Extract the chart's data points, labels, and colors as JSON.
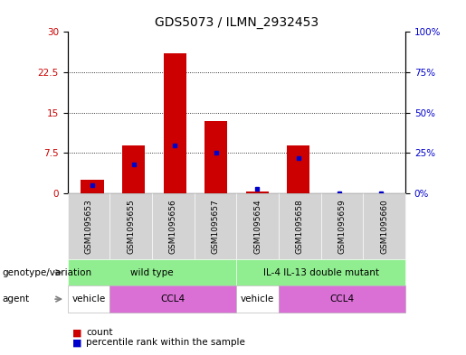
{
  "title": "GDS5073 / ILMN_2932453",
  "samples": [
    "GSM1095653",
    "GSM1095655",
    "GSM1095656",
    "GSM1095657",
    "GSM1095654",
    "GSM1095658",
    "GSM1095659",
    "GSM1095660"
  ],
  "counts": [
    2.5,
    9.0,
    26.0,
    13.5,
    0.3,
    9.0,
    0.05,
    0.05
  ],
  "percentiles": [
    5,
    18,
    30,
    25,
    3,
    22,
    0,
    0
  ],
  "ylim_left": [
    0,
    30
  ],
  "ylim_right": [
    0,
    100
  ],
  "yticks_left": [
    0,
    7.5,
    15,
    22.5,
    30
  ],
  "yticks_right": [
    0,
    25,
    50,
    75,
    100
  ],
  "bar_color": "#cc0000",
  "marker_color": "#0000cc",
  "bar_width": 0.55,
  "genotype_groups": [
    {
      "label": "wild type",
      "start": 0,
      "end": 4,
      "color": "#90ee90"
    },
    {
      "label": "IL-4 IL-13 double mutant",
      "start": 4,
      "end": 8,
      "color": "#90ee90"
    }
  ],
  "agent_groups": [
    {
      "label": "vehicle",
      "start": 0,
      "end": 1,
      "color": "#ffffff"
    },
    {
      "label": "CCL4",
      "start": 1,
      "end": 4,
      "color": "#da70d6"
    },
    {
      "label": "vehicle",
      "start": 4,
      "end": 5,
      "color": "#ffffff"
    },
    {
      "label": "CCL4",
      "start": 5,
      "end": 8,
      "color": "#da70d6"
    }
  ],
  "genotype_label": "genotype/variation",
  "agent_label": "agent",
  "legend_count": "count",
  "legend_percentile": "percentile rank within the sample",
  "title_fontsize": 10,
  "tick_fontsize": 7.5,
  "label_fontsize": 8
}
